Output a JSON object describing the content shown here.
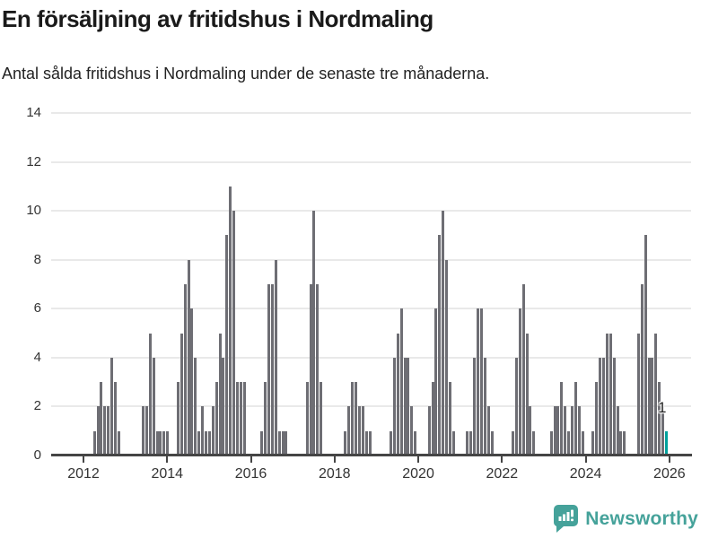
{
  "header": {
    "title": "En försäljning av fritidshus i Nordmaling",
    "subtitle": "Antal sålda fritidshus i Nordmaling under de senaste tre månaderna."
  },
  "chart_data": {
    "type": "bar",
    "title": "En försäljning av fritidshus i Nordmaling",
    "subtitle": "Antal sålda fritidshus i Nordmaling under de senaste tre månaderna.",
    "start_month": "2012-01",
    "end_month": "2025-12",
    "months_per_bar": 1,
    "values": [
      0,
      0,
      0,
      1,
      2,
      3,
      2,
      2,
      4,
      3,
      1,
      0,
      0,
      0,
      0,
      0,
      0,
      2,
      2,
      5,
      4,
      1,
      1,
      1,
      1,
      0,
      0,
      3,
      5,
      7,
      8,
      6,
      4,
      1,
      2,
      1,
      1,
      2,
      3,
      5,
      4,
      9,
      11,
      10,
      3,
      3,
      3,
      0,
      0,
      0,
      0,
      1,
      3,
      7,
      7,
      8,
      1,
      1,
      1,
      0,
      0,
      0,
      0,
      0,
      3,
      7,
      10,
      7,
      3,
      0,
      0,
      0,
      0,
      0,
      0,
      1,
      2,
      3,
      3,
      2,
      2,
      1,
      1,
      0,
      0,
      0,
      0,
      0,
      1,
      4,
      5,
      6,
      4,
      4,
      2,
      1,
      0,
      0,
      0,
      2,
      3,
      6,
      9,
      10,
      8,
      3,
      1,
      0,
      0,
      0,
      1,
      1,
      4,
      6,
      6,
      4,
      2,
      1,
      0,
      0,
      0,
      0,
      0,
      1,
      4,
      6,
      7,
      5,
      2,
      1,
      0,
      0,
      0,
      0,
      1,
      2,
      2,
      3,
      2,
      1,
      2,
      3,
      2,
      1,
      0,
      0,
      1,
      3,
      4,
      4,
      5,
      5,
      4,
      2,
      1,
      1,
      0,
      0,
      0,
      5,
      7,
      9,
      4,
      4,
      5,
      3,
      2,
      1
    ],
    "x_tick_labels": [
      "2012",
      "2014",
      "2016",
      "2018",
      "2020",
      "2022",
      "2024",
      "2026"
    ],
    "y_ticks": [
      0,
      2,
      4,
      6,
      8,
      10,
      12,
      14
    ],
    "ylim": [
      0,
      14
    ],
    "grid": true,
    "legend": false,
    "bar_color": "#6e6e74",
    "highlight": {
      "index": 167,
      "value": 1,
      "label": "1",
      "color": "#00a29d"
    }
  },
  "footer": {
    "brand": "Newsworthy",
    "brand_color": "#45a29a",
    "logo_icon": "newsworthy-chart-bubble-icon"
  }
}
